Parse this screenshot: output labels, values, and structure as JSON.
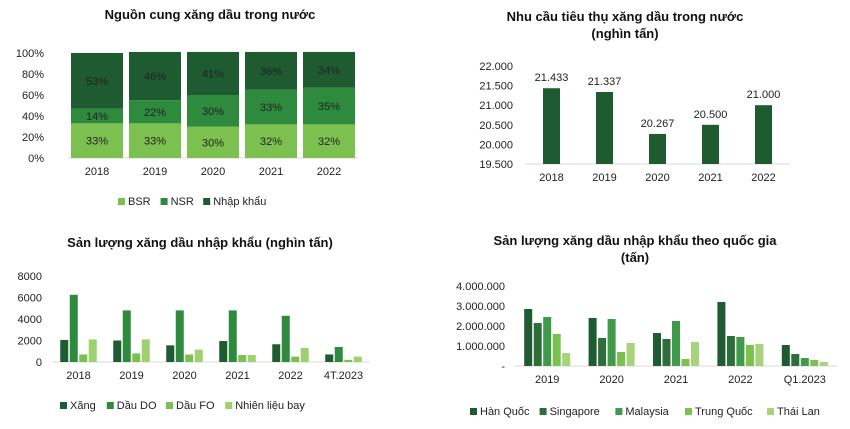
{
  "colors": {
    "dark": "#1e5b30",
    "mid": "#2e8b3e",
    "light": "#7cc04f",
    "lighter": "#9ed16e",
    "text": "#222222",
    "grid": "#d9d9d9"
  },
  "chart_data": [
    {
      "type": "bar",
      "stacked": true,
      "percent": true,
      "title": "Nguồn cung xăng dầu trong nước",
      "categories": [
        "2018",
        "2019",
        "2020",
        "2021",
        "2022"
      ],
      "series": [
        {
          "name": "BSR",
          "values": [
            33,
            33,
            30,
            32,
            32
          ],
          "color": "#7cc04f"
        },
        {
          "name": "NSR",
          "values": [
            14,
            22,
            30,
            33,
            35
          ],
          "color": "#2e8b3e"
        },
        {
          "name": "Nhập khẩu",
          "values": [
            53,
            46,
            41,
            36,
            34
          ],
          "color": "#1e5b30"
        }
      ],
      "ylim": [
        0,
        100
      ],
      "yticks": [
        "0%",
        "20%",
        "40%",
        "60%",
        "80%",
        "100%"
      ],
      "legend": "bottom"
    },
    {
      "type": "bar",
      "title": "Nhu cầu tiêu thụ xăng dầu trong nước\n(nghìn tấn)",
      "categories": [
        "2018",
        "2019",
        "2020",
        "2021",
        "2022"
      ],
      "values": [
        21433,
        21337,
        20267,
        20500,
        21000
      ],
      "labels": [
        "21.433",
        "21.337",
        "20.267",
        "20.500",
        "21.000"
      ],
      "ylim": [
        19500,
        22000
      ],
      "yticks": [
        "19.500",
        "20.000",
        "20.500",
        "21.000",
        "21.500",
        "22.000"
      ]
    },
    {
      "type": "bar",
      "title": "Sản lượng xăng dầu nhập khẩu (nghìn tấn)",
      "categories": [
        "2018",
        "2019",
        "2020",
        "2021",
        "2022",
        "4T.2023"
      ],
      "series": [
        {
          "name": "Xăng",
          "values": [
            2050,
            2000,
            1550,
            1950,
            1650,
            700
          ],
          "color": "#1e5b30"
        },
        {
          "name": "Dầu DO",
          "values": [
            6250,
            4800,
            4800,
            4800,
            4300,
            1400
          ],
          "color": "#2e8b3e"
        },
        {
          "name": "Dầu FO",
          "values": [
            700,
            800,
            700,
            650,
            500,
            200
          ],
          "color": "#7cc04f"
        },
        {
          "name": "Nhiên liệu bay",
          "values": [
            2100,
            2100,
            1150,
            650,
            1300,
            500
          ],
          "color": "#9ed16e"
        }
      ],
      "ylim": [
        0,
        8000
      ],
      "yticks": [
        "0",
        "2000",
        "4000",
        "6000",
        "8000"
      ],
      "legend": "bottom"
    },
    {
      "type": "bar",
      "title": "Sản lượng xăng dầu nhập khẩu theo quốc gia\n(tấn)",
      "categories": [
        "2019",
        "2020",
        "2021",
        "2022",
        "Q1.2023"
      ],
      "series": [
        {
          "name": "Hàn Quốc",
          "values": [
            2850000,
            2400000,
            1650000,
            3200000,
            1050000
          ],
          "color": "#1e5b30"
        },
        {
          "name": "Singapore",
          "values": [
            2150000,
            1400000,
            1350000,
            1500000,
            600000
          ],
          "color": "#2e6e3a"
        },
        {
          "name": "Malaysia",
          "values": [
            2450000,
            2350000,
            2250000,
            1450000,
            400000
          ],
          "color": "#3f9a4a"
        },
        {
          "name": "Trung Quốc",
          "values": [
            1600000,
            700000,
            350000,
            1050000,
            300000
          ],
          "color": "#7cc04f"
        },
        {
          "name": "Thái Lan",
          "values": [
            650000,
            1150000,
            1200000,
            1100000,
            200000
          ],
          "color": "#a8d37a"
        }
      ],
      "ylim": [
        0,
        4000000
      ],
      "yticks": [
        "-",
        "1.000.000",
        "2.000.000",
        "3.000.000",
        "4.000.000"
      ],
      "legend": "bottom"
    }
  ]
}
